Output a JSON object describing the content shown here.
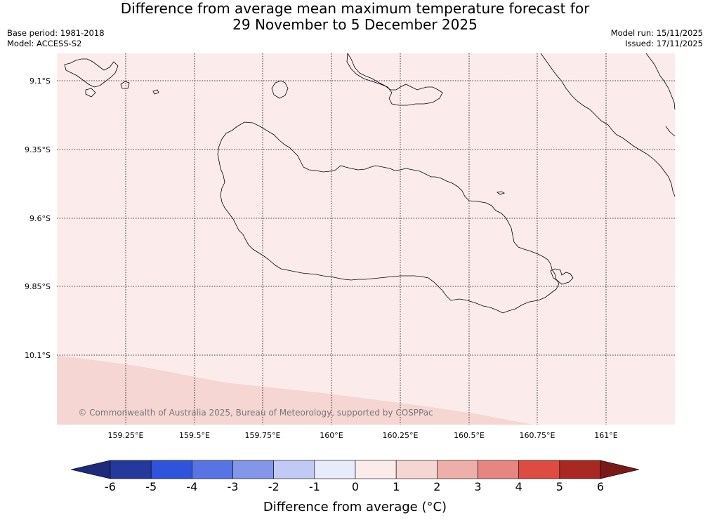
{
  "title": {
    "line1": "Difference from average mean maximum temperature forecast for",
    "line2": "29 November to 5 December 2025"
  },
  "meta_left": {
    "base_period": "Base period: 1981-2018",
    "model": "Model: ACCESS-S2"
  },
  "meta_right": {
    "model_run": "Model run: 15/11/2025",
    "issued": "Issued: 17/11/2025"
  },
  "map": {
    "lat_labels": [
      "9.1°S",
      "9.35°S",
      "9.6°S",
      "9.85°S",
      "10.1°S"
    ],
    "lon_labels": [
      "159.25°E",
      "159.5°E",
      "159.75°E",
      "160°E",
      "160.25°E",
      "160.5°E",
      "160.75°E",
      "161°E"
    ],
    "copyright": "© Commonwealth of Australia 2025, Bureau of Meteorology, supported by COSPPac",
    "zones": [
      {
        "category": "0 to 1",
        "color": "#fbeceb"
      },
      {
        "category": "1 to 2",
        "color": "#f5d6d3"
      }
    ]
  },
  "colorbar": {
    "label": "Difference from average (°C)",
    "ticks": [
      "-6",
      "-5",
      "-4",
      "-3",
      "-2",
      "-1",
      "0",
      "1",
      "2",
      "3",
      "4",
      "5",
      "6"
    ],
    "under_color": "#1e2a7a",
    "over_color": "#7a1a18",
    "colors": [
      "#25399c",
      "#2f53dd",
      "#5873e3",
      "#8396e8",
      "#c1caf4",
      "#e8ebfb",
      "#fbeceb",
      "#f5d6d3",
      "#eeaeaa",
      "#e68680",
      "#de4b41",
      "#a92922"
    ]
  }
}
